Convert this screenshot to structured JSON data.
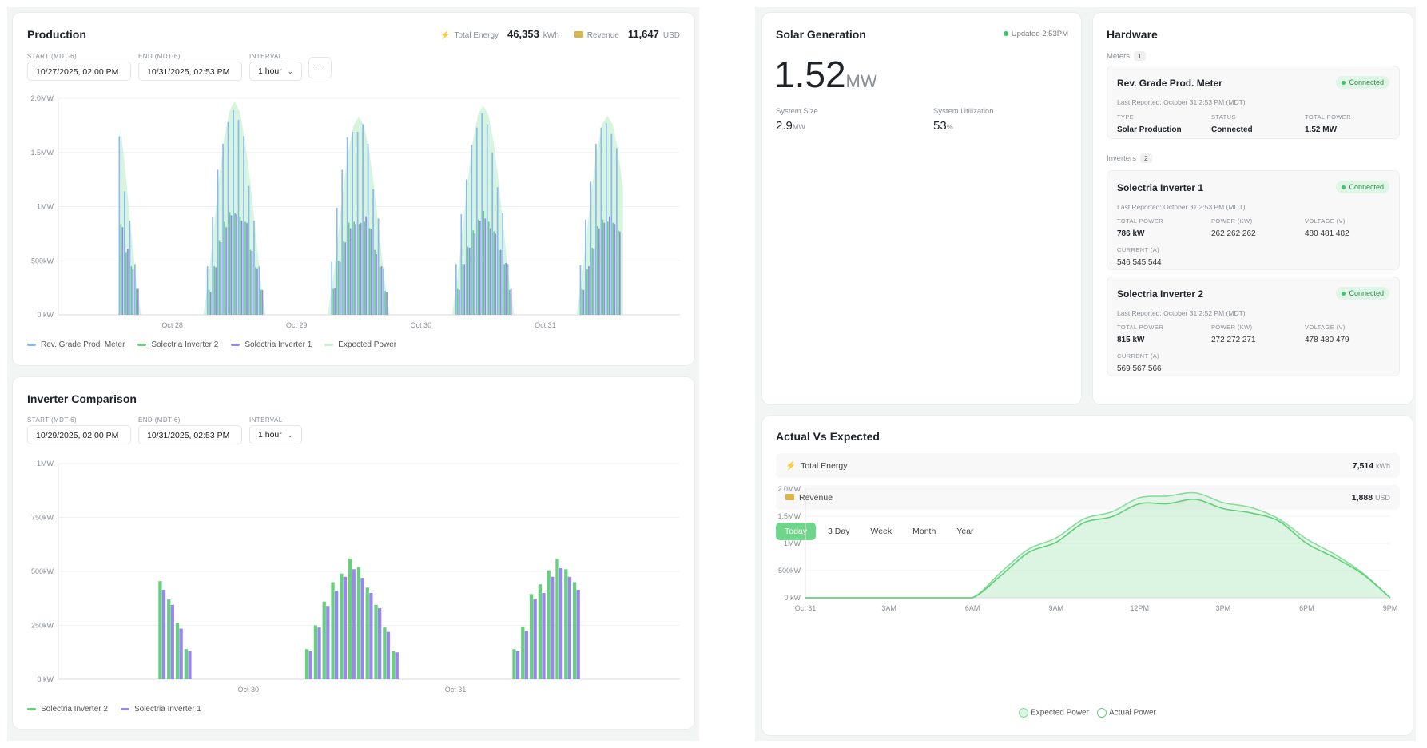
{
  "production": {
    "title": "Production",
    "total_energy_label": "Total Energy",
    "total_energy_value": "46,353",
    "total_energy_unit": "kWh",
    "revenue_label": "Revenue",
    "revenue_value": "11,647",
    "revenue_unit": "USD",
    "start_label": "START (MDT-6)",
    "start_value": "10/27/2025, 02:00 PM",
    "end_label": "END (MDT-6)",
    "end_value": "10/31/2025, 02:53 PM",
    "interval_label": "INTERVAL",
    "interval_value": "1 hour",
    "more_label": "···"
  },
  "inverter_comparison": {
    "title": "Inverter Comparison",
    "start_label": "START (MDT-6)",
    "start_value": "10/29/2025, 02:00 PM",
    "end_label": "END (MDT-6)",
    "end_value": "10/31/2025, 02:53 PM",
    "interval_label": "INTERVAL",
    "interval_value": "1 hour"
  },
  "solar_generation": {
    "title": "Solar Generation",
    "updated": "Updated 2:53PM",
    "current_value": "1.52",
    "current_unit": "MW",
    "system_size_label": "System Size",
    "system_size_value": "2.9",
    "system_size_unit": "MW",
    "utilization_label": "System Utilization",
    "utilization_value": "53",
    "utilization_unit": "%"
  },
  "hardware": {
    "title": "Hardware",
    "meters_label": "Meters",
    "meters_count": "1",
    "inverters_label": "Inverters",
    "inverters_count": "2",
    "meter": {
      "name": "Rev. Grade Prod. Meter",
      "status_badge": "Connected",
      "last_reported": "Last Reported: October 31 2:53 PM (MDT)",
      "type_label": "TYPE",
      "type_value": "Solar Production",
      "status_label": "STATUS",
      "status_value": "Connected",
      "total_power_label": "TOTAL POWER",
      "total_power_value": "1.52 MW"
    },
    "inverters": [
      {
        "name": "Solectria Inverter 1",
        "status_badge": "Connected",
        "last_reported": "Last Reported: October 31 2:53 PM (MDT)",
        "total_power_label": "TOTAL POWER",
        "total_power_value": "786 kW",
        "power_label": "POWER (KW)",
        "power_value": "262 262 262",
        "voltage_label": "VOLTAGE (V)",
        "voltage_value": "480 481 482",
        "current_label": "CURRENT (A)",
        "current_value": "546 545 544"
      },
      {
        "name": "Solectria Inverter 2",
        "status_badge": "Connected",
        "last_reported": "Last Reported: October 31 2:52 PM (MDT)",
        "total_power_label": "TOTAL POWER",
        "total_power_value": "815 kW",
        "power_label": "POWER (KW)",
        "power_value": "272 272 271",
        "voltage_label": "VOLTAGE (V)",
        "voltage_value": "478 480 479",
        "current_label": "CURRENT (A)",
        "current_value": "569 567 566"
      }
    ]
  },
  "actual_vs_expected": {
    "title": "Actual Vs Expected",
    "total_energy_label": "Total Energy",
    "total_energy_value": "7,514",
    "total_energy_unit": "kWh",
    "revenue_label": "Revenue",
    "revenue_value": "1,888",
    "revenue_unit": "USD",
    "tabs": [
      "Today",
      "3 Day",
      "Week",
      "Month",
      "Year"
    ],
    "active_tab": "Today"
  },
  "icons": {
    "energy": "lightning-icon",
    "revenue": "money-icon",
    "select": "chevron-down-icon",
    "status": "status-dot-icon"
  },
  "colors": {
    "meter": "#8ab8f0",
    "inverter_2": "#67d07f",
    "inverter_1": "#9b86f0",
    "expected": "#c9f1d3",
    "accent": "#6fd58a",
    "actual_line": "#5fcf78"
  },
  "chart_data": [
    {
      "type": "bar",
      "title": "Production",
      "xlim": [
        "2025-10-27 02:00",
        "2025-11-01 02:00"
      ],
      "x_ticks": [
        {
          "date": "2025-10-28",
          "label": "Oct 28"
        },
        {
          "date": "2025-10-29",
          "label": "Oct 29"
        },
        {
          "date": "2025-10-30",
          "label": "Oct 30"
        },
        {
          "date": "2025-10-31",
          "label": "Oct 31"
        }
      ],
      "ylim": [
        0,
        2000
      ],
      "y_unit": "kW",
      "y_ticks": [
        {
          "value": 0,
          "label": "0 kW"
        },
        {
          "value": 500,
          "label": "500kW"
        },
        {
          "value": 1000,
          "label": "1MW"
        },
        {
          "value": 1500,
          "label": "1.5MW"
        },
        {
          "value": 2000,
          "label": "2.0MW"
        }
      ],
      "grid": true,
      "legend": "bottom-left",
      "series": [
        {
          "name": "Rev. Grade Prod. Meter",
          "kind": "bar",
          "color": "#8ab8f0",
          "days": [
            {
              "date": "2025-10-27",
              "start_hour": 14,
              "values": [
                1650,
                1140,
                870,
                470
              ]
            },
            {
              "date": "2025-10-28",
              "start_hour": 7,
              "values": [
                450,
                900,
                1340,
                1580,
                1780,
                1890,
                1800,
                1650,
                1190,
                870,
                450
              ]
            },
            {
              "date": "2025-10-29",
              "start_hour": 7,
              "values": [
                490,
                990,
                1340,
                1640,
                1690,
                1690,
                1760,
                1580,
                1160,
                890,
                430
              ]
            },
            {
              "date": "2025-10-30",
              "start_hour": 7,
              "values": [
                470,
                930,
                1250,
                1570,
                1730,
                1860,
                1760,
                1500,
                1180,
                940,
                470
              ]
            },
            {
              "date": "2025-10-31",
              "start_hour": 7,
              "values": [
                460,
                880,
                1230,
                1580,
                1730,
                1770,
                1670,
                1540
              ]
            }
          ]
        },
        {
          "name": "Solectria Inverter 2",
          "kind": "bar",
          "color": "#67d07f",
          "days": [
            {
              "date": "2025-10-27",
              "start_hour": 14,
              "values": [
                840,
                580,
                450,
                240
              ]
            },
            {
              "date": "2025-10-28",
              "start_hour": 7,
              "values": [
                230,
                450,
                690,
                860,
                950,
                940,
                910,
                860,
                600,
                440,
                230
              ]
            },
            {
              "date": "2025-10-29",
              "start_hour": 7,
              "values": [
                240,
                500,
                680,
                850,
                860,
                840,
                860,
                800,
                600,
                440,
                220
              ]
            },
            {
              "date": "2025-10-30",
              "start_hour": 7,
              "values": [
                240,
                470,
                630,
                780,
                880,
                960,
                860,
                770,
                600,
                470,
                230
              ]
            },
            {
              "date": "2025-10-31",
              "start_hour": 7,
              "values": [
                240,
                420,
                620,
                820,
                880,
                860,
                850,
                780
              ]
            }
          ]
        },
        {
          "name": "Solectria Inverter 1",
          "kind": "bar",
          "color": "#9b86f0",
          "days": [
            {
              "date": "2025-10-27",
              "start_hour": 14,
              "values": [
                810,
                610,
                420,
                240
              ]
            },
            {
              "date": "2025-10-28",
              "start_hour": 7,
              "values": [
                210,
                440,
                670,
                810,
                920,
                930,
                870,
                850,
                590,
                430,
                230
              ]
            },
            {
              "date": "2025-10-29",
              "start_hour": 7,
              "values": [
                250,
                490,
                670,
                800,
                840,
                850,
                910,
                790,
                560,
                450,
                210
              ]
            },
            {
              "date": "2025-10-30",
              "start_hour": 7,
              "values": [
                230,
                470,
                620,
                750,
                870,
                890,
                800,
                750,
                600,
                480,
                240
              ]
            },
            {
              "date": "2025-10-31",
              "start_hour": 7,
              "values": [
                230,
                450,
                610,
                800,
                850,
                910,
                840,
                770
              ]
            }
          ]
        },
        {
          "name": "Expected Power",
          "kind": "area",
          "color": "#c9f1d3",
          "days": [
            {
              "date": "2025-10-27",
              "start_hour": 14,
              "values": [
                1750,
                1300,
                800,
                330,
                0
              ]
            },
            {
              "date": "2025-10-28",
              "start_hour": 6,
              "values": [
                0,
                340,
                800,
                1250,
                1630,
                1880,
                1970,
                1880,
                1630,
                1250,
                800,
                340,
                0
              ]
            },
            {
              "date": "2025-10-29",
              "start_hour": 6,
              "values": [
                0,
                320,
                740,
                1170,
                1520,
                1750,
                1830,
                1750,
                1520,
                1170,
                740,
                320,
                0
              ]
            },
            {
              "date": "2025-10-30",
              "start_hour": 6,
              "values": [
                0,
                330,
                780,
                1230,
                1600,
                1850,
                1930,
                1850,
                1600,
                1230,
                780,
                330,
                0
              ]
            },
            {
              "date": "2025-10-31",
              "start_hour": 6,
              "values": [
                0,
                320,
                750,
                1170,
                1530,
                1760,
                1840,
                1760,
                1530,
                1170
              ]
            }
          ]
        }
      ]
    },
    {
      "type": "bar",
      "title": "Inverter Comparison",
      "xlim": [
        "2025-10-29 02:00",
        "2025-11-01 02:00"
      ],
      "x_ticks": [
        {
          "date": "2025-10-30",
          "label": "Oct 30"
        },
        {
          "date": "2025-10-31",
          "label": "Oct 31"
        }
      ],
      "ylim": [
        0,
        1000
      ],
      "y_unit": "kW",
      "y_ticks": [
        {
          "value": 0,
          "label": "0 kW"
        },
        {
          "value": 250,
          "label": "250kW"
        },
        {
          "value": 500,
          "label": "500kW"
        },
        {
          "value": 750,
          "label": "750kW"
        },
        {
          "value": 1000,
          "label": "1MW"
        }
      ],
      "grid": true,
      "legend": "bottom-left",
      "series": [
        {
          "name": "Solectria Inverter 2",
          "kind": "bar",
          "color": "#67d07f",
          "days": [
            {
              "date": "2025-10-29",
              "start_hour": 14,
              "values": [
                455,
                370,
                260,
                140
              ]
            },
            {
              "date": "2025-10-30",
              "start_hour": 7,
              "values": [
                140,
                250,
                360,
                450,
                490,
                560,
                520,
                425,
                345,
                240,
                130
              ]
            },
            {
              "date": "2025-10-31",
              "start_hour": 7,
              "values": [
                140,
                245,
                395,
                440,
                505,
                560,
                510,
                450
              ]
            }
          ]
        },
        {
          "name": "Solectria Inverter 1",
          "kind": "bar",
          "color": "#9b86f0",
          "days": [
            {
              "date": "2025-10-29",
              "start_hour": 14,
              "values": [
                415,
                345,
                235,
                130
              ]
            },
            {
              "date": "2025-10-30",
              "start_hour": 7,
              "values": [
                130,
                240,
                340,
                410,
                475,
                510,
                470,
                400,
                330,
                220,
                125
              ]
            },
            {
              "date": "2025-10-31",
              "start_hour": 7,
              "values": [
                130,
                225,
                370,
                400,
                475,
                515,
                475,
                415
              ]
            }
          ]
        }
      ]
    },
    {
      "type": "area",
      "title": "Actual Vs Expected",
      "x_hours": [
        0,
        1,
        2,
        3,
        4,
        5,
        6,
        7,
        8,
        9,
        10,
        11,
        12,
        13,
        14,
        15,
        16,
        17,
        18,
        19,
        20,
        21
      ],
      "xlim": [
        0,
        21
      ],
      "x_ticks": [
        {
          "hour": 0,
          "label": "Oct 31"
        },
        {
          "hour": 3,
          "label": "3AM"
        },
        {
          "hour": 6,
          "label": "6AM"
        },
        {
          "hour": 9,
          "label": "9AM"
        },
        {
          "hour": 12,
          "label": "12PM"
        },
        {
          "hour": 15,
          "label": "3PM"
        },
        {
          "hour": 18,
          "label": "6PM"
        },
        {
          "hour": 21,
          "label": "9PM"
        }
      ],
      "ylim": [
        0,
        2000
      ],
      "y_unit": "kW",
      "y_ticks": [
        {
          "value": 0,
          "label": "0 kW"
        },
        {
          "value": 500,
          "label": "500kW"
        },
        {
          "value": 1000,
          "label": "1MW"
        },
        {
          "value": 1500,
          "label": "1.5MW"
        },
        {
          "value": 2000,
          "label": "2.0MW"
        }
      ],
      "grid": true,
      "legend": "bottom-center",
      "series": [
        {
          "name": "Expected Power",
          "color": "#86dc9a",
          "values": [
            0,
            0,
            0,
            0,
            0,
            0,
            0,
            460,
            890,
            1100,
            1450,
            1580,
            1840,
            1870,
            1930,
            1750,
            1660,
            1450,
            1080,
            800,
            460,
            0
          ]
        },
        {
          "name": "Actual Power",
          "color": "#5fcf78",
          "values": [
            0,
            0,
            0,
            0,
            0,
            0,
            0,
            400,
            830,
            1020,
            1380,
            1490,
            1730,
            1730,
            1810,
            1640,
            1560,
            1410,
            1000,
            740,
            440,
            0
          ]
        }
      ]
    }
  ]
}
